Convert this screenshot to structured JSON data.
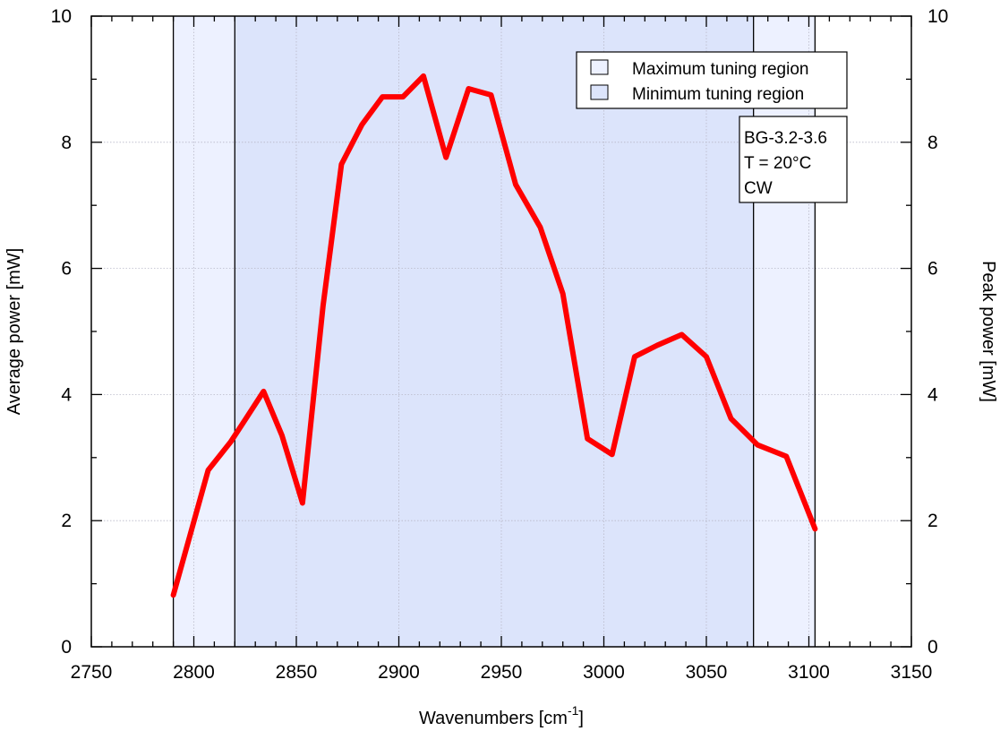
{
  "chart_data": {
    "type": "line",
    "xlabel": "Wavenumbers [cm",
    "xlabel_superscript": "-1",
    "xlabel_suffix": "]",
    "ylabel": "Average power [mW]",
    "ylabel_right": "Peak power [mW]",
    "xlim": [
      2750,
      3150
    ],
    "ylim": [
      0,
      10
    ],
    "ylim_right": [
      0,
      10
    ],
    "xticks": [
      2750,
      2800,
      2850,
      2900,
      2950,
      3000,
      3050,
      3100,
      3150
    ],
    "yticks": [
      0,
      2,
      4,
      6,
      8,
      10
    ],
    "yticks_right": [
      0,
      2,
      4,
      6,
      8,
      10
    ],
    "grid": true,
    "colors": {
      "line": "#ff0000",
      "max_region": "#edf1ff",
      "min_region": "#dce4fb"
    },
    "regions": [
      {
        "name": "Maximum tuning region",
        "x0": 2790,
        "x1": 3103
      },
      {
        "name": "Minimum tuning region",
        "x0": 2820,
        "x1": 3073
      }
    ],
    "series": [
      {
        "x": [
          2790,
          2798,
          2807,
          2818,
          2825,
          2834,
          2843,
          2853,
          2863,
          2872,
          2882,
          2892,
          2902,
          2912,
          2923,
          2934,
          2945,
          2957,
          2969,
          2980,
          2992,
          3004,
          3015,
          3026,
          3038,
          3050,
          3062,
          3075,
          3089,
          3103
        ],
        "y": [
          0.82,
          1.75,
          2.8,
          3.25,
          3.6,
          4.05,
          3.35,
          2.28,
          5.4,
          7.65,
          8.28,
          8.72,
          8.72,
          9.05,
          7.76,
          8.85,
          8.75,
          7.33,
          6.65,
          5.6,
          3.3,
          3.05,
          4.6,
          4.78,
          4.95,
          4.6,
          3.62,
          3.2,
          3.02,
          1.87
        ]
      }
    ],
    "legend": {
      "position": "top-right",
      "entries": [
        "Maximum tuning region",
        "Minimum tuning region"
      ]
    },
    "annotation": [
      "BG-3.2-3.6",
      "T = 20°C",
      "CW"
    ]
  }
}
